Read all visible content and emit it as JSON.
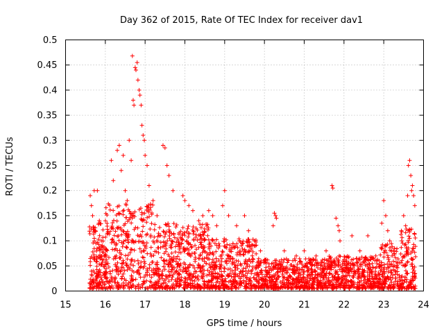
{
  "chart_data": {
    "type": "scatter",
    "title": "Day 362 of 2015, Rate Of TEC Index for receiver dav1",
    "xlabel": "GPS time / hours",
    "ylabel": "ROTI / TECUs",
    "xlim": [
      15,
      24
    ],
    "ylim": [
      0,
      0.5
    ],
    "x_ticks": [
      15,
      16,
      17,
      18,
      19,
      20,
      21,
      22,
      23,
      24
    ],
    "x_tick_labels": [
      "15",
      "16",
      "17",
      "18",
      "19",
      "20",
      "21",
      "22",
      "23",
      "24"
    ],
    "y_ticks": [
      0,
      0.05,
      0.1,
      0.15,
      0.2,
      0.25,
      0.3,
      0.35,
      0.4,
      0.45,
      0.5
    ],
    "y_tick_labels": [
      "0",
      "0.05",
      "0.1",
      "0.15",
      "0.2",
      "0.25",
      "0.3",
      "0.35",
      "0.4",
      "0.45",
      "0.5"
    ],
    "grid": true,
    "marker": "+",
    "color": "#ff0000",
    "data_coverage": [
      15.6,
      23.8
    ],
    "series": [
      {
        "name": "ROTI",
        "points": [
          [
            15.62,
            0.19
          ],
          [
            15.65,
            0.17
          ],
          [
            15.68,
            0.15
          ],
          [
            15.72,
            0.2
          ],
          [
            15.75,
            0.12
          ],
          [
            15.8,
            0.2
          ],
          [
            15.85,
            0.14
          ],
          [
            15.9,
            0.1
          ],
          [
            16.15,
            0.26
          ],
          [
            16.2,
            0.22
          ],
          [
            16.3,
            0.28
          ],
          [
            16.35,
            0.29
          ],
          [
            16.4,
            0.24
          ],
          [
            16.45,
            0.27
          ],
          [
            16.5,
            0.2
          ],
          [
            16.55,
            0.18
          ],
          [
            16.6,
            0.3
          ],
          [
            16.65,
            0.26
          ],
          [
            16.68,
            0.468
          ],
          [
            16.7,
            0.38
          ],
          [
            16.72,
            0.37
          ],
          [
            16.75,
            0.445
          ],
          [
            16.77,
            0.44
          ],
          [
            16.8,
            0.455
          ],
          [
            16.82,
            0.42
          ],
          [
            16.85,
            0.4
          ],
          [
            16.87,
            0.39
          ],
          [
            16.9,
            0.37
          ],
          [
            16.92,
            0.33
          ],
          [
            16.95,
            0.31
          ],
          [
            16.98,
            0.3
          ],
          [
            17.0,
            0.27
          ],
          [
            17.05,
            0.25
          ],
          [
            17.1,
            0.21
          ],
          [
            17.2,
            0.18
          ],
          [
            17.3,
            0.15
          ],
          [
            17.45,
            0.29
          ],
          [
            17.5,
            0.285
          ],
          [
            17.55,
            0.25
          ],
          [
            17.6,
            0.23
          ],
          [
            17.7,
            0.2
          ],
          [
            17.95,
            0.19
          ],
          [
            18.0,
            0.18
          ],
          [
            18.1,
            0.17
          ],
          [
            18.2,
            0.16
          ],
          [
            18.35,
            0.14
          ],
          [
            18.45,
            0.15
          ],
          [
            18.6,
            0.16
          ],
          [
            18.7,
            0.15
          ],
          [
            18.8,
            0.13
          ],
          [
            18.95,
            0.17
          ],
          [
            19.0,
            0.2
          ],
          [
            19.1,
            0.15
          ],
          [
            19.3,
            0.13
          ],
          [
            19.5,
            0.15
          ],
          [
            19.6,
            0.12
          ],
          [
            19.75,
            0.09
          ],
          [
            19.9,
            0.08
          ],
          [
            20.25,
            0.155
          ],
          [
            20.28,
            0.15
          ],
          [
            20.3,
            0.145
          ],
          [
            20.22,
            0.13
          ],
          [
            20.5,
            0.08
          ],
          [
            20.8,
            0.07
          ],
          [
            21.0,
            0.08
          ],
          [
            21.3,
            0.07
          ],
          [
            21.55,
            0.08
          ],
          [
            21.7,
            0.21
          ],
          [
            21.72,
            0.205
          ],
          [
            21.8,
            0.145
          ],
          [
            21.85,
            0.13
          ],
          [
            21.88,
            0.12
          ],
          [
            21.9,
            0.1
          ],
          [
            22.2,
            0.11
          ],
          [
            22.4,
            0.08
          ],
          [
            22.6,
            0.11
          ],
          [
            22.8,
            0.07
          ],
          [
            22.95,
            0.135
          ],
          [
            23.0,
            0.18
          ],
          [
            23.05,
            0.15
          ],
          [
            23.1,
            0.12
          ],
          [
            23.15,
            0.1
          ],
          [
            23.25,
            0.08
          ],
          [
            23.45,
            0.1
          ],
          [
            23.5,
            0.15
          ],
          [
            23.55,
            0.13
          ],
          [
            23.6,
            0.19
          ],
          [
            23.62,
            0.25
          ],
          [
            23.65,
            0.26
          ],
          [
            23.68,
            0.23
          ],
          [
            23.7,
            0.2
          ],
          [
            23.72,
            0.21
          ],
          [
            23.75,
            0.19
          ],
          [
            23.78,
            0.17
          ]
        ]
      }
    ]
  }
}
